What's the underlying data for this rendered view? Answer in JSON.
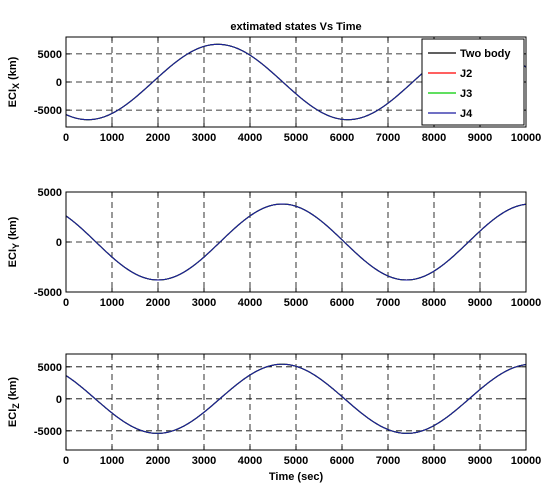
{
  "chart_data": [
    {
      "type": "line",
      "title": "extimated states Vs Time",
      "ylabel_main": "ECI",
      "ylabel_sub": "X",
      "ylabel_unit": " (km)",
      "xlim": [
        0,
        10000
      ],
      "ylim": [
        -8000,
        8000
      ],
      "xticks": [
        0,
        1000,
        2000,
        3000,
        4000,
        5000,
        6000,
        7000,
        8000,
        9000,
        10000
      ],
      "yticks": [
        -5000,
        0,
        5000
      ],
      "grid": true,
      "legend_position": "top-right",
      "wave": {
        "amplitude": 6700,
        "period": 5650,
        "peak_x": 3300
      },
      "series": [
        {
          "name": "Two body",
          "color": "#000000"
        },
        {
          "name": "J2",
          "color": "#ff0000"
        },
        {
          "name": "J3",
          "color": "#00cc00"
        },
        {
          "name": "J4",
          "color": "#1a1aa0"
        }
      ]
    },
    {
      "type": "line",
      "ylabel_main": "ECI",
      "ylabel_sub": "Y",
      "ylabel_unit": " (km)",
      "xlim": [
        0,
        10000
      ],
      "ylim": [
        -5000,
        5000
      ],
      "xticks": [
        0,
        1000,
        2000,
        3000,
        4000,
        5000,
        6000,
        7000,
        8000,
        9000,
        10000
      ],
      "yticks": [
        -5000,
        0,
        5000
      ],
      "grid": true,
      "wave": {
        "amplitude": 3800,
        "period": 5400,
        "peak_x": 4700
      },
      "series": [
        {
          "color": "#000000"
        },
        {
          "color": "#ff0000"
        },
        {
          "color": "#00cc00"
        },
        {
          "color": "#1a1aa0"
        }
      ]
    },
    {
      "type": "line",
      "xlabel": "Time (sec)",
      "ylabel_main": "ECI",
      "ylabel_sub": "Z",
      "ylabel_unit": " (km)",
      "xlim": [
        0,
        10000
      ],
      "ylim": [
        -8000,
        7000
      ],
      "xticks": [
        0,
        1000,
        2000,
        3000,
        4000,
        5000,
        6000,
        7000,
        8000,
        9000,
        10000
      ],
      "yticks": [
        -5000,
        0,
        5000
      ],
      "grid": true,
      "wave": {
        "amplitude": 5400,
        "period": 5420,
        "peak_x": 4700
      },
      "series": [
        {
          "color": "#000000"
        },
        {
          "color": "#ff0000"
        },
        {
          "color": "#00cc00"
        },
        {
          "color": "#1a1aa0"
        }
      ]
    }
  ]
}
